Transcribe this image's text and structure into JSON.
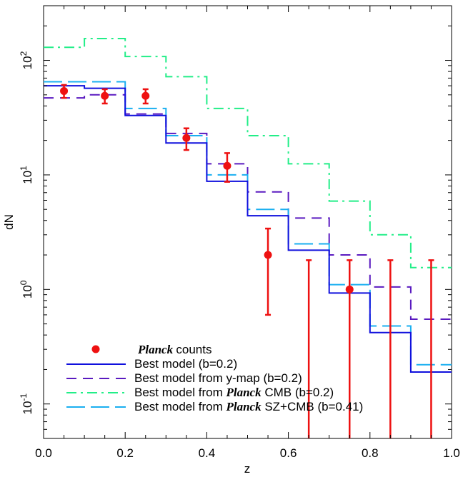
{
  "chart_data": {
    "type": "line",
    "title": "",
    "xlabel": "z",
    "ylabel": "dN",
    "xlim": [
      0.0,
      1.0
    ],
    "ylim": [
      0.05,
      300
    ],
    "yscale": "log",
    "x_ticks": [
      "0.0",
      "0.2",
      "0.4",
      "0.6",
      "0.8",
      "1.0"
    ],
    "y_ticks": [
      {
        "value": 0.1,
        "base": "10",
        "exp": "-1"
      },
      {
        "value": 1,
        "base": "10",
        "exp": "0"
      },
      {
        "value": 10,
        "base": "10",
        "exp": "1"
      },
      {
        "value": 100,
        "base": "10",
        "exp": "2"
      }
    ],
    "bin_edges": [
      0.0,
      0.1,
      0.2,
      0.3,
      0.4,
      0.5,
      0.6,
      0.7,
      0.8,
      0.9,
      1.0
    ],
    "step_series": [
      {
        "name": "Best model from Planck CMB (b=0.2)",
        "color": "#22ee88",
        "dash": "dashdot",
        "values": [
          130,
          155,
          108,
          72,
          38,
          22,
          12.5,
          5.9,
          3.0,
          1.55
        ]
      },
      {
        "name": "Best model from y-map (b=0.2)",
        "color": "#5a1ac0",
        "dash": "dashed",
        "values": [
          47,
          50,
          34,
          23,
          12.5,
          7.1,
          4.2,
          2.0,
          1.05,
          0.55
        ]
      },
      {
        "name": "Best model from Planck SZ+CMB (b=0.41)",
        "color": "#1aaff0",
        "dash": "longdash",
        "values": [
          65,
          65,
          38,
          22,
          10,
          5.0,
          2.5,
          1.1,
          0.48,
          0.22
        ]
      },
      {
        "name": "Best model (b=0.2)",
        "color": "#1010dd",
        "dash": "solid",
        "values": [
          60,
          57,
          33,
          19,
          8.8,
          4.4,
          2.2,
          0.93,
          0.42,
          0.19
        ]
      }
    ],
    "points": {
      "name": "Planck counts",
      "color": "#ee1111",
      "x": [
        0.05,
        0.15,
        0.25,
        0.35,
        0.45,
        0.55,
        0.75
      ],
      "y": [
        54,
        49,
        49,
        21,
        12,
        2.0,
        1.0
      ],
      "y_low": [
        47,
        42,
        42,
        16.5,
        8.7,
        0.6,
        null
      ],
      "y_high": [
        61,
        56,
        56,
        25.5,
        15.5,
        3.4,
        null
      ]
    },
    "upper_limits": {
      "x": [
        0.65,
        0.75,
        0.85,
        0.95
      ],
      "y_high": [
        1.8,
        1.8,
        1.8,
        1.8
      ]
    },
    "legend": {
      "position": "bottom-left",
      "entries": [
        {
          "key": "points",
          "italic": "Planck",
          "text": "counts"
        },
        {
          "key": "best",
          "italic": "",
          "text": "Best model (b=0.2)"
        },
        {
          "key": "ymap",
          "italic": "",
          "text": "Best model from y-map (b=0.2)"
        },
        {
          "key": "cmb",
          "prefix": "Best model from ",
          "italic": "Planck",
          "text": "CMB (b=0.2)"
        },
        {
          "key": "szcmb",
          "prefix": "Best model from ",
          "italic": "Planck",
          "text": "SZ+CMB (b=0.41)"
        }
      ]
    }
  }
}
